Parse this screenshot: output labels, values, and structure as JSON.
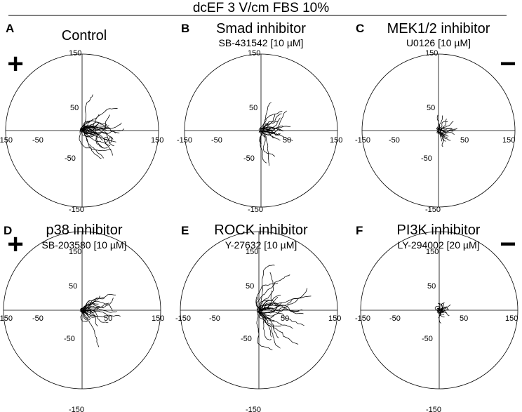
{
  "figure": {
    "title": "dcEF 3 V/cm FBS 10%",
    "positive_sign": "+",
    "negative_sign": "−"
  },
  "panels": [
    {
      "id": "A",
      "letter": "A",
      "title": "Control",
      "subtitle": "",
      "seed": 11,
      "tracks": 34,
      "spread": 0.55,
      "bias": 0.42,
      "reach": 0.55
    },
    {
      "id": "B",
      "letter": "B",
      "title": "Smad inhibitor",
      "subtitle": "SB-431542 [10 µM]",
      "seed": 23,
      "tracks": 28,
      "spread": 0.45,
      "bias": 0.38,
      "reach": 0.45
    },
    {
      "id": "C",
      "letter": "C",
      "title": "MEK1/2 inhibitor",
      "subtitle": "U0126 [10 µM]",
      "seed": 37,
      "tracks": 24,
      "spread": 0.3,
      "bias": 0.26,
      "reach": 0.26
    },
    {
      "id": "D",
      "letter": "D",
      "title": "p38 inhibitor",
      "subtitle": "SB-203580 [10 µM]",
      "seed": 41,
      "tracks": 30,
      "spread": 0.45,
      "bias": 0.42,
      "reach": 0.5
    },
    {
      "id": "E",
      "letter": "E",
      "title": "ROCK inhibitor",
      "subtitle": "Y-27632 [10 µM]",
      "seed": 53,
      "tracks": 36,
      "spread": 0.7,
      "bias": 0.42,
      "reach": 0.72
    },
    {
      "id": "F",
      "letter": "F",
      "title": "PI3K inhibitor",
      "subtitle": "LY-294002 [20 µM]",
      "seed": 67,
      "tracks": 26,
      "spread": 0.35,
      "bias": 0.05,
      "reach": 0.16
    }
  ],
  "axes": {
    "range": [
      -150,
      150
    ],
    "tick_labels": {
      "left": "-150",
      "right": "150",
      "top": "150",
      "bottom": "-150",
      "pos": "50",
      "neg": "-50"
    }
  }
}
